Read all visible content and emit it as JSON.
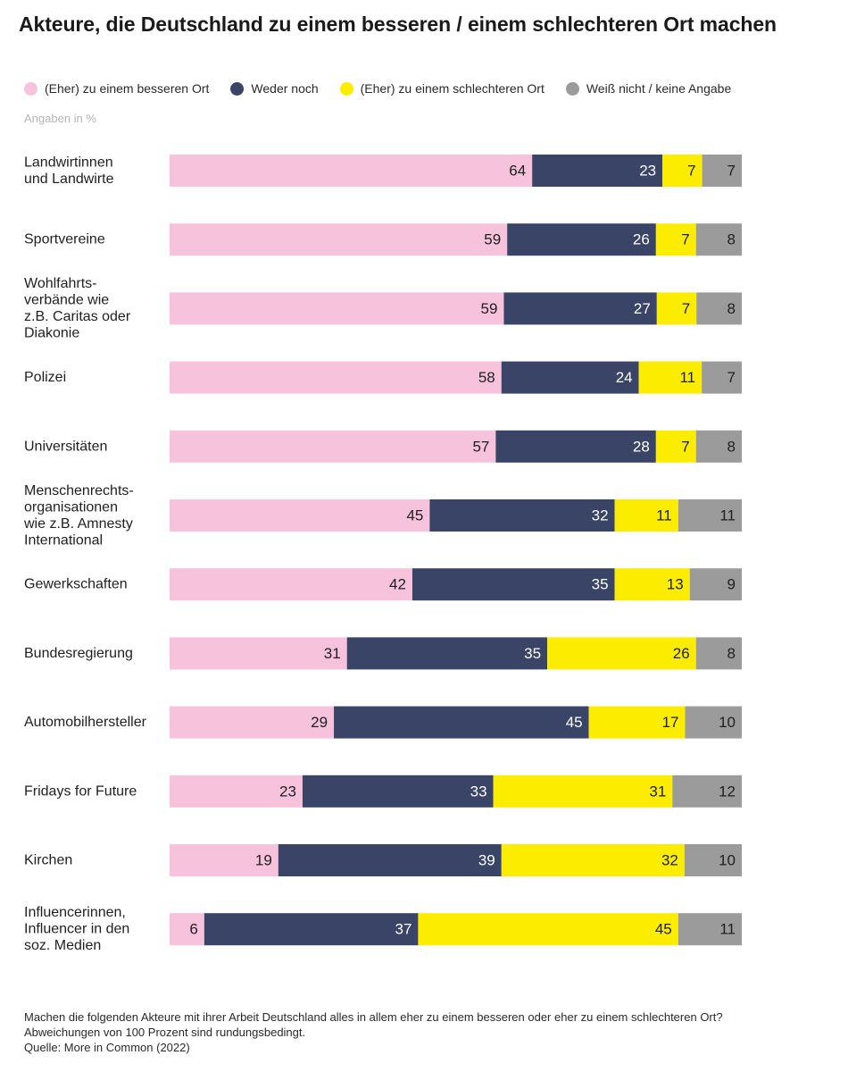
{
  "colors": {
    "better": "#f7c2dc",
    "neither": "#3a4466",
    "worse": "#fcec00",
    "dontknow": "#9b9b9b"
  },
  "chart_data": {
    "type": "bar",
    "orientation": "horizontal",
    "stacked": true,
    "title": "Akteure, die Deutschland zu einem besseren / einem schlechteren Ort machen",
    "unit_label": "Angaben in %",
    "legend": [
      {
        "key": "better",
        "label": "(Eher) zu einem besseren Ort"
      },
      {
        "key": "neither",
        "label": "Weder noch"
      },
      {
        "key": "worse",
        "label": "(Eher) zu einem schlechteren Ort"
      },
      {
        "key": "dontknow",
        "label": "Weiß nicht / keine Angabe"
      }
    ],
    "categories": [
      [
        "Landwirtinnen",
        "und Landwirte"
      ],
      [
        "Sportvereine"
      ],
      [
        "Wohlfahrts-",
        "verbände wie",
        "z.B. Caritas oder",
        "Diakonie"
      ],
      [
        "Polizei"
      ],
      [
        "Universitäten"
      ],
      [
        "Menschenrechts-",
        "organisationen",
        "wie z.B. Amnesty",
        "International"
      ],
      [
        "Gewerkschaften"
      ],
      [
        "Bundesregierung"
      ],
      [
        "Automobilhersteller"
      ],
      [
        "Fridays for Future"
      ],
      [
        "Kirchen"
      ],
      [
        "Influencerinnen,",
        "Influencer in den",
        "soz. Medien"
      ]
    ],
    "series": [
      {
        "name": "(Eher) zu einem besseren Ort",
        "key": "better",
        "values": [
          64,
          59,
          59,
          58,
          57,
          45,
          42,
          31,
          29,
          23,
          19,
          6
        ]
      },
      {
        "name": "Weder noch",
        "key": "neither",
        "values": [
          23,
          26,
          27,
          24,
          28,
          32,
          35,
          35,
          45,
          33,
          39,
          37
        ]
      },
      {
        "name": "(Eher) zu einem schlechteren Ort",
        "key": "worse",
        "values": [
          7,
          7,
          7,
          11,
          7,
          11,
          13,
          26,
          17,
          31,
          32,
          45
        ]
      },
      {
        "name": "Weiß nicht / keine Angabe",
        "key": "dontknow",
        "values": [
          7,
          8,
          8,
          7,
          8,
          11,
          9,
          8,
          10,
          12,
          10,
          11
        ]
      }
    ]
  },
  "footer": {
    "line1": "Machen die folgenden Akteure mit ihrer Arbeit Deutschland alles in allem eher zu einem besseren oder eher zu einem schlechteren Ort?",
    "line2": "Abweichungen von 100 Prozent sind rundungsbedingt.",
    "line3": "Quelle: More in Common (2022)"
  }
}
